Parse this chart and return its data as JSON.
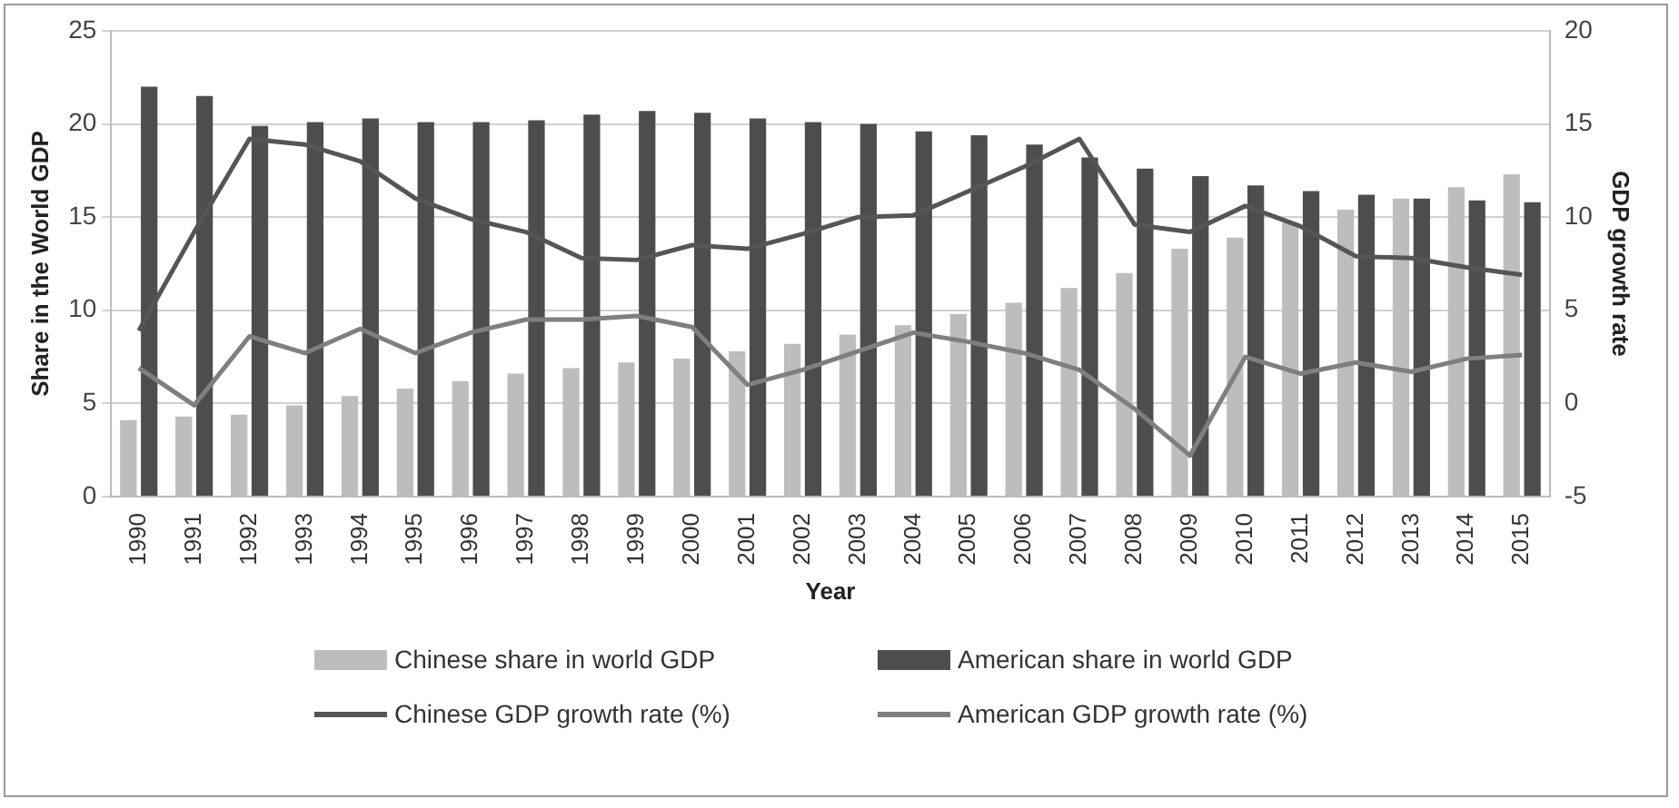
{
  "chart_data": {
    "type": "bar",
    "xlabel": "Year",
    "ylabel": "Share in the World GDP",
    "y2label": "GDP growth rate",
    "categories": [
      "1990",
      "1991",
      "1992",
      "1993",
      "1994",
      "1995",
      "1996",
      "1997",
      "1998",
      "1999",
      "2000",
      "2001",
      "2002",
      "2003",
      "2004",
      "2005",
      "2006",
      "2007",
      "2008",
      "2009",
      "2010",
      "2011",
      "2012",
      "2013",
      "2014",
      "2015"
    ],
    "series": [
      {
        "name": "Chinese share in world GDP",
        "color": "#bdbdbd",
        "values": [
          4.1,
          4.3,
          4.4,
          4.9,
          5.4,
          5.8,
          6.2,
          6.6,
          6.9,
          7.2,
          7.4,
          7.8,
          8.2,
          8.7,
          9.2,
          9.8,
          10.4,
          11.2,
          12.0,
          13.3,
          13.9,
          14.7,
          15.4,
          16.0,
          16.6,
          17.3
        ]
      },
      {
        "name": "American share in world GDP",
        "color": "#4d4d4d",
        "values": [
          22.0,
          21.5,
          19.9,
          20.1,
          20.3,
          20.1,
          20.1,
          20.2,
          20.5,
          20.7,
          20.6,
          20.3,
          20.1,
          20.0,
          19.6,
          19.4,
          18.9,
          18.2,
          17.6,
          17.2,
          16.7,
          16.4,
          16.2,
          16.0,
          15.9,
          15.8
        ]
      },
      {
        "name": "Chinese GDP growth rate (%)",
        "type": "line",
        "axis": "y2",
        "color": "#555555",
        "values": [
          3.9,
          9.2,
          14.2,
          13.9,
          13.0,
          11.0,
          9.9,
          9.2,
          7.8,
          7.7,
          8.5,
          8.3,
          9.1,
          10.0,
          10.1,
          11.4,
          12.7,
          14.2,
          9.6,
          9.2,
          10.6,
          9.5,
          7.9,
          7.8,
          7.3,
          6.9
        ]
      },
      {
        "name": "American GDP growth rate (%)",
        "type": "line",
        "axis": "y2",
        "color": "#7f7f7f",
        "values": [
          1.9,
          -0.1,
          3.6,
          2.7,
          4.0,
          2.7,
          3.8,
          4.5,
          4.5,
          4.7,
          4.1,
          1.0,
          1.8,
          2.8,
          3.8,
          3.3,
          2.7,
          1.8,
          -0.3,
          -2.8,
          2.5,
          1.6,
          2.2,
          1.7,
          2.4,
          2.6
        ]
      }
    ],
    "ylim": [
      0,
      25
    ],
    "yticks": [
      0,
      5,
      10,
      15,
      20,
      25
    ],
    "y2lim": [
      -5,
      20
    ],
    "y2ticks": [
      -5,
      0,
      5,
      10,
      15,
      20
    ],
    "grid": "y",
    "legend": "bottom",
    "marker": "none",
    "line_style": "solid"
  }
}
